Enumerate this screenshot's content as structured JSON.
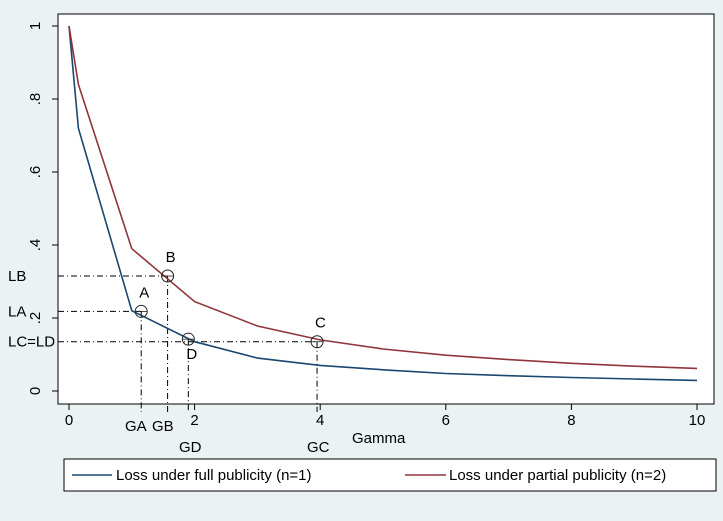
{
  "chart_data": {
    "type": "line",
    "xlabel": "Gamma",
    "ylabel": "",
    "xlim": [
      0,
      10
    ],
    "ylim": [
      0,
      1
    ],
    "x_ticks": [
      {
        "value": 0,
        "label": "0"
      },
      {
        "value": 2,
        "label": "2"
      },
      {
        "value": 4,
        "label": "4"
      },
      {
        "value": 6,
        "label": "6"
      },
      {
        "value": 8,
        "label": "8"
      },
      {
        "value": 10,
        "label": "10"
      }
    ],
    "y_ticks": [
      {
        "value": 0,
        "label": "0"
      },
      {
        "value": 0.2,
        "label": ".2"
      },
      {
        "value": 0.4,
        "label": ".4"
      },
      {
        "value": 0.6,
        "label": ".6"
      },
      {
        "value": 0.8,
        "label": ".8"
      },
      {
        "value": 1,
        "label": "1"
      }
    ],
    "grid": false,
    "legend_position": "bottom",
    "series": [
      {
        "name": "Loss under full publicity (n=1)",
        "color": "#1a476f",
        "x": [
          0,
          0.15,
          1,
          2,
          3,
          4,
          5,
          6,
          7,
          8,
          9,
          10
        ],
        "y": [
          1,
          0.72,
          0.22,
          0.135,
          0.09,
          0.07,
          0.058,
          0.048,
          0.042,
          0.037,
          0.033,
          0.029
        ]
      },
      {
        "name": "Loss under partial publicity (n=2)",
        "color": "#90353b",
        "x": [
          0,
          0.15,
          1,
          2,
          3,
          4,
          5,
          6,
          7,
          8,
          9,
          10
        ],
        "y": [
          1,
          0.84,
          0.39,
          0.245,
          0.178,
          0.14,
          0.115,
          0.098,
          0.086,
          0.076,
          0.068,
          0.062
        ]
      }
    ],
    "annotations": [
      {
        "id": "A",
        "label": "A",
        "x": 1.15,
        "y": 0.218,
        "label_pos": "above"
      },
      {
        "id": "B",
        "label": "B",
        "x": 1.57,
        "y": 0.315,
        "label_pos": "above"
      },
      {
        "id": "C",
        "label": "C",
        "x": 3.95,
        "y": 0.135,
        "label_pos": "above"
      },
      {
        "id": "D",
        "label": "D",
        "x": 1.9,
        "y": 0.142,
        "label_pos": "below"
      }
    ],
    "reference_lines": [
      {
        "point": "A",
        "y_label": "LA",
        "x_label": "GA"
      },
      {
        "point": "B",
        "y_label": "LB",
        "x_label": "GB"
      },
      {
        "point": "C",
        "y_label": "LC=LD",
        "x_label": "GC"
      },
      {
        "point": "D",
        "y_label": "",
        "x_label": "GD"
      }
    ]
  }
}
